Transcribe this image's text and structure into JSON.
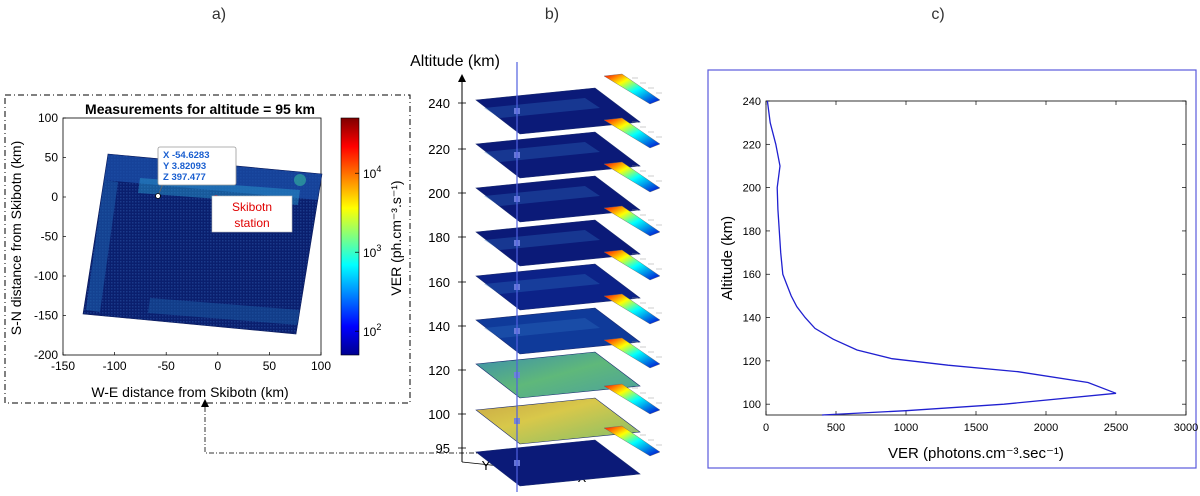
{
  "panel_labels": [
    "a)",
    "b)",
    "c)"
  ],
  "panel_a": {
    "title": "Measurements for altitude = 95 km",
    "xlabel": "W-E distance from Skibotn (km)",
    "ylabel": "S-N distance from Skibotn (km)",
    "x_ticks": [
      "-150",
      "-100",
      "-50",
      "0",
      "50",
      "100"
    ],
    "y_ticks": [
      "100",
      "50",
      "0",
      "-50",
      "-100",
      "-150",
      "-200"
    ],
    "colorbar_label": "VER (ph.cm⁻³.s⁻¹)",
    "colorbar_ticks": [
      {
        "base": "10",
        "exp": "4",
        "value": 10000
      },
      {
        "base": "10",
        "exp": "3",
        "value": 1000
      },
      {
        "base": "10",
        "exp": "2",
        "value": 100
      }
    ],
    "colorbar_colors": [
      "#7f0000",
      "#ff0000",
      "#ff8000",
      "#ffff00",
      "#80ff80",
      "#00ffff",
      "#0080ff",
      "#0000ff",
      "#00008f"
    ],
    "datatip": {
      "x": "X -54.6283",
      "y": "Y 3.82093",
      "z": "Z 397.477"
    },
    "station_label_1": "Skibotn",
    "station_label_2": "station",
    "station_color": "#ff0000",
    "xlim": [
      -150,
      100
    ],
    "ylim": [
      -200,
      100
    ]
  },
  "panel_b": {
    "axis_label": "Altitude (km)",
    "altitude_ticks": [
      "240",
      "220",
      "200",
      "180",
      "160",
      "140",
      "120",
      "100",
      "95"
    ],
    "x_label": "X",
    "y_label": "Y"
  },
  "chart_data": {
    "type": "line",
    "xlabel": "VER (photons.cm⁻³.sec⁻¹)",
    "ylabel": "Altitude (km)",
    "xlim": [
      0,
      3000
    ],
    "ylim": [
      95,
      240
    ],
    "x_ticks": [
      "0",
      "500",
      "1000",
      "1500",
      "2000",
      "2500",
      "3000"
    ],
    "y_ticks": [
      "100",
      "120",
      "140",
      "160",
      "180",
      "200",
      "220",
      "240"
    ],
    "series": [
      {
        "color": "#2020d0",
        "points": [
          [
            400,
            95
          ],
          [
            1000,
            97
          ],
          [
            1700,
            100
          ],
          [
            2500,
            105
          ],
          [
            2300,
            110
          ],
          [
            1800,
            115
          ],
          [
            1300,
            118
          ],
          [
            900,
            121
          ],
          [
            650,
            125
          ],
          [
            480,
            130
          ],
          [
            350,
            135
          ],
          [
            280,
            140
          ],
          [
            220,
            145
          ],
          [
            180,
            150
          ],
          [
            150,
            155
          ],
          [
            120,
            160
          ],
          [
            105,
            170
          ],
          [
            95,
            180
          ],
          [
            85,
            190
          ],
          [
            80,
            200
          ],
          [
            90,
            205
          ],
          [
            100,
            210
          ],
          [
            70,
            220
          ],
          [
            30,
            230
          ],
          [
            10,
            240
          ]
        ]
      }
    ],
    "frame_color": "#5b5bdb"
  }
}
